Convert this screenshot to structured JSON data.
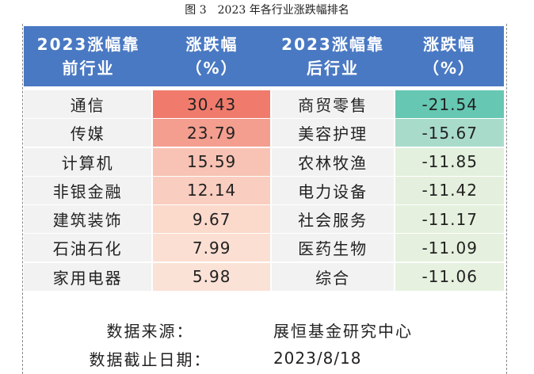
{
  "caption": "图 3　2023 年各行业涨跌幅排名",
  "header": {
    "col1": [
      "2023涨幅靠",
      "前行业"
    ],
    "col2": [
      "涨跌幅",
      "（%）"
    ],
    "col3": [
      "2023涨幅靠",
      "后行业"
    ],
    "col4": [
      "涨跌幅",
      "（%）"
    ]
  },
  "rows": [
    {
      "top_industry": "通信",
      "top_change": "30.43",
      "bottom_industry": "商贸零售",
      "bottom_change": "-21.54"
    },
    {
      "top_industry": "传媒",
      "top_change": "23.79",
      "bottom_industry": "美容护理",
      "bottom_change": "-15.67"
    },
    {
      "top_industry": "计算机",
      "top_change": "15.59",
      "bottom_industry": "农林牧渔",
      "bottom_change": "-11.85"
    },
    {
      "top_industry": "非银金融",
      "top_change": "12.14",
      "bottom_industry": "电力设备",
      "bottom_change": "-11.42"
    },
    {
      "top_industry": "建筑装饰",
      "top_change": "9.67",
      "bottom_industry": "社会服务",
      "bottom_change": "-11.17"
    },
    {
      "top_industry": "石油石化",
      "top_change": "7.99",
      "bottom_industry": "医药生物",
      "bottom_change": "-11.09"
    },
    {
      "top_industry": "家用电器",
      "top_change": "5.98",
      "bottom_industry": "综合",
      "bottom_change": "-11.06"
    }
  ],
  "colors": {
    "header_bg": "#4a79c3",
    "label_bg": "#f2f2f2",
    "top_fill": [
      "#f07b6c",
      "#f39e8f",
      "#f8c3b4",
      "#f9cdbf",
      "#fbd9cb",
      "#fbdfd2",
      "#fbe2d6"
    ],
    "bottom_fill": [
      "#66c7b2",
      "#a9dbcb",
      "#e3f0dd",
      "#e4f0dd",
      "#e5f1de",
      "#e5f1de",
      "#e6f1df"
    ]
  },
  "footer": {
    "source_label": "数据来源：",
    "source_value": "展恒基金研究中心",
    "date_label": "数据截止日期：",
    "date_value": "2023/8/18"
  }
}
